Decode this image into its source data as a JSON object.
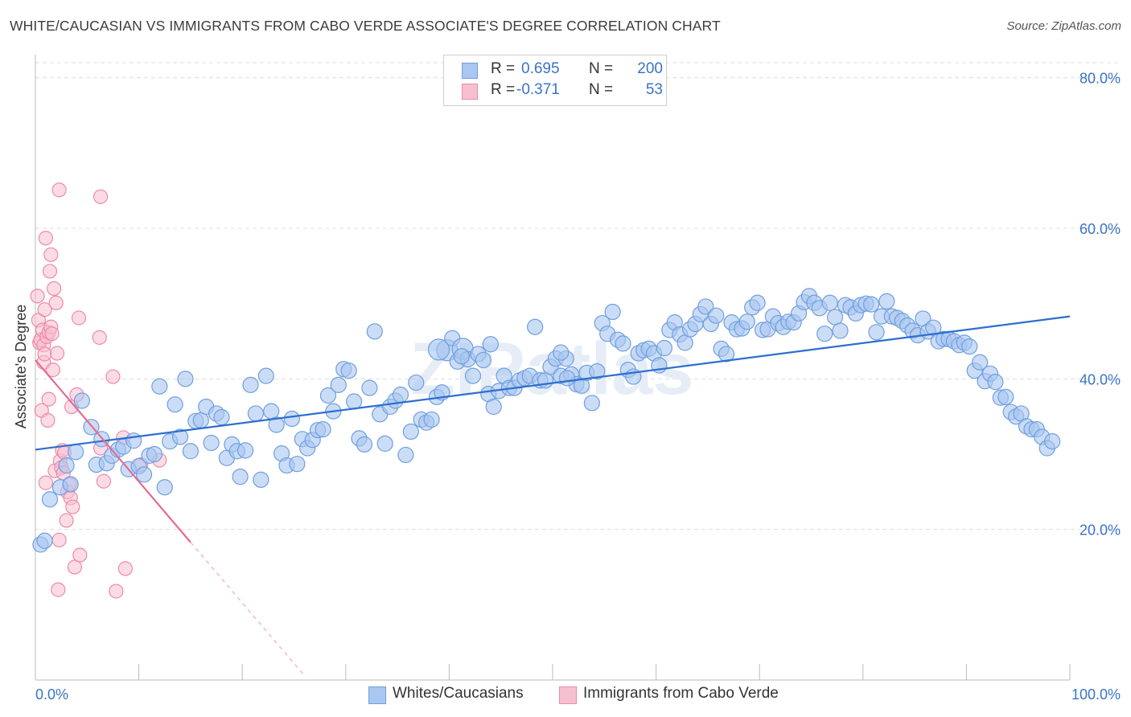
{
  "title": "WHITE/CAUCASIAN VS IMMIGRANTS FROM CABO VERDE ASSOCIATE'S DEGREE CORRELATION CHART",
  "source": "Source: ZipAtlas.com",
  "watermark": "ZIPatlas",
  "colors": {
    "blue_fill": "#a9c7f0",
    "blue_stroke": "#6f9fe0",
    "blue_line": "#2c6fd0",
    "pink_fill": "#f7c0d0",
    "pink_stroke": "#ee8aaa",
    "pink_line": "#e56b95",
    "axis_text": "#3a73c8",
    "grid": "#dddddd"
  },
  "legend": {
    "r_label": "R =",
    "n_label": "N =",
    "rows": [
      {
        "r": "0.695",
        "n": "200"
      },
      {
        "r": "-0.371",
        "n": "53"
      }
    ]
  },
  "chart_data": {
    "type": "scatter",
    "title": "WHITE/CAUCASIAN VS IMMIGRANTS FROM CABO VERDE ASSOCIATE'S DEGREE CORRELATION CHART",
    "xlabel": "",
    "ylabel": "Associate's Degree",
    "xlim": [
      0,
      100
    ],
    "ylim": [
      0,
      82
    ],
    "x_tick_labels": [
      "0.0%",
      "100.0%"
    ],
    "y_ticks": [
      20,
      40,
      60,
      80
    ],
    "y_tick_labels": [
      "20.0%",
      "40.0%",
      "60.0%",
      "80.0%"
    ],
    "grid": true,
    "legend_position": "bottom",
    "series": [
      {
        "name": "Whites/Caucasians",
        "trend": {
          "x0": 0,
          "y0": 30.6,
          "x1": 100,
          "y1": 48.3
        },
        "points": [
          [
            0.5,
            18
          ],
          [
            0.9,
            18.5
          ],
          [
            1.4,
            24
          ],
          [
            2.4,
            25.6
          ],
          [
            3.0,
            28.5
          ],
          [
            3.4,
            26
          ],
          [
            3.9,
            30.3
          ],
          [
            4.5,
            37.1
          ],
          [
            5.4,
            33.6
          ],
          [
            5.9,
            28.6
          ],
          [
            6.4,
            32
          ],
          [
            6.9,
            28.8
          ],
          [
            7.4,
            29.8
          ],
          [
            8.0,
            30.6
          ],
          [
            8.5,
            31
          ],
          [
            9.0,
            28
          ],
          [
            9.5,
            31.8
          ],
          [
            10.0,
            28.4
          ],
          [
            10.5,
            27.3
          ],
          [
            11.0,
            29.8
          ],
          [
            11.5,
            30
          ],
          [
            12.0,
            39
          ],
          [
            12.5,
            25.6
          ],
          [
            13.0,
            31.7
          ],
          [
            13.5,
            36.6
          ],
          [
            14.0,
            32.3
          ],
          [
            14.5,
            40
          ],
          [
            15.0,
            30.4
          ],
          [
            15.5,
            34.4
          ],
          [
            16.0,
            34.5
          ],
          [
            16.5,
            36.3
          ],
          [
            17.0,
            31.5
          ],
          [
            17.5,
            35.4
          ],
          [
            18.0,
            34.9
          ],
          [
            18.5,
            29.5
          ],
          [
            19.0,
            31.3
          ],
          [
            19.5,
            30.4
          ],
          [
            19.8,
            27
          ],
          [
            20.3,
            30.5
          ],
          [
            20.8,
            39.2
          ],
          [
            21.3,
            35.4
          ],
          [
            21.8,
            26.6
          ],
          [
            22.3,
            40.4
          ],
          [
            22.8,
            35.7
          ],
          [
            23.3,
            33.9
          ],
          [
            23.8,
            30.1
          ],
          [
            24.3,
            28.5
          ],
          [
            24.8,
            34.7
          ],
          [
            25.3,
            28.7
          ],
          [
            25.8,
            32
          ],
          [
            26.3,
            30.8
          ],
          [
            26.8,
            31.9
          ],
          [
            27.3,
            33.2
          ],
          [
            27.8,
            33.3
          ],
          [
            28.3,
            37.8
          ],
          [
            28.8,
            35.7
          ],
          [
            29.3,
            39.2
          ],
          [
            29.8,
            41.3
          ],
          [
            30.3,
            41.1
          ],
          [
            30.8,
            37
          ],
          [
            31.3,
            32.1
          ],
          [
            31.8,
            31.3
          ],
          [
            32.3,
            38.8
          ],
          [
            32.8,
            46.3
          ],
          [
            33.3,
            35.3
          ],
          [
            33.8,
            31.4
          ],
          [
            34.3,
            36.3
          ],
          [
            34.8,
            37.1
          ],
          [
            35.3,
            37.9
          ],
          [
            35.8,
            29.9
          ],
          [
            36.3,
            33
          ],
          [
            36.8,
            39.5
          ],
          [
            37.3,
            34.6
          ],
          [
            37.8,
            34.2
          ],
          [
            38.3,
            34.6
          ],
          [
            38.8,
            37.6
          ],
          [
            39.3,
            38.2
          ],
          [
            39.8,
            43.8
          ],
          [
            40.3,
            45.4
          ],
          [
            40.8,
            42.3
          ],
          [
            41.3,
            44
          ],
          [
            41.8,
            42.6
          ],
          [
            42.3,
            40.4
          ],
          [
            42.8,
            43.3
          ],
          [
            43.3,
            42.5
          ],
          [
            43.8,
            38
          ],
          [
            44.3,
            36.3
          ],
          [
            44.8,
            38.4
          ],
          [
            45.3,
            40.4
          ],
          [
            45.8,
            38.8
          ],
          [
            46.3,
            38.8
          ],
          [
            46.8,
            39.8
          ],
          [
            47.3,
            40.1
          ],
          [
            47.8,
            40.4
          ],
          [
            48.3,
            46.9
          ],
          [
            48.8,
            39.8
          ],
          [
            49.3,
            39.8
          ],
          [
            49.8,
            41.6
          ],
          [
            50.3,
            42.7
          ],
          [
            50.8,
            40.4
          ],
          [
            51.3,
            42.7
          ],
          [
            51.8,
            40.6
          ],
          [
            52.3,
            39.3
          ],
          [
            52.8,
            39.1
          ],
          [
            53.3,
            40.8
          ],
          [
            53.8,
            36.8
          ],
          [
            54.3,
            41
          ],
          [
            54.8,
            47.4
          ],
          [
            55.3,
            46
          ],
          [
            55.8,
            48.9
          ],
          [
            56.3,
            45.2
          ],
          [
            56.8,
            44.7
          ],
          [
            57.3,
            41.2
          ],
          [
            57.8,
            40.3
          ],
          [
            58.3,
            43.4
          ],
          [
            58.8,
            43.8
          ],
          [
            59.3,
            44
          ],
          [
            59.8,
            43.4
          ],
          [
            60.3,
            41.8
          ],
          [
            60.8,
            44.1
          ],
          [
            61.3,
            46.5
          ],
          [
            61.8,
            47.5
          ],
          [
            62.3,
            45.9
          ],
          [
            62.8,
            44.8
          ],
          [
            63.3,
            46.6
          ],
          [
            63.8,
            47.3
          ],
          [
            64.3,
            48.6
          ],
          [
            64.8,
            49.6
          ],
          [
            65.3,
            47.3
          ],
          [
            65.8,
            48.4
          ],
          [
            66.3,
            44
          ],
          [
            66.8,
            43.3
          ],
          [
            67.3,
            47.5
          ],
          [
            67.8,
            46.6
          ],
          [
            68.3,
            46.7
          ],
          [
            68.8,
            47.6
          ],
          [
            69.3,
            49.5
          ],
          [
            69.8,
            50.1
          ],
          [
            70.3,
            46.5
          ],
          [
            70.8,
            46.6
          ],
          [
            71.3,
            48.3
          ],
          [
            71.8,
            47.4
          ],
          [
            72.3,
            46.9
          ],
          [
            72.8,
            47.6
          ],
          [
            73.3,
            47.5
          ],
          [
            73.8,
            48.7
          ],
          [
            74.3,
            50.2
          ],
          [
            74.8,
            51
          ],
          [
            75.3,
            50.1
          ],
          [
            75.8,
            49.4
          ],
          [
            76.3,
            46
          ],
          [
            76.8,
            50.1
          ],
          [
            77.3,
            48.2
          ],
          [
            77.8,
            46.4
          ],
          [
            78.3,
            49.8
          ],
          [
            78.8,
            49.5
          ],
          [
            79.3,
            48.7
          ],
          [
            79.8,
            49.8
          ],
          [
            80.3,
            50
          ],
          [
            80.8,
            49.9
          ],
          [
            81.3,
            46.2
          ],
          [
            81.8,
            48.3
          ],
          [
            82.3,
            50.3
          ],
          [
            82.8,
            48.3
          ],
          [
            83.3,
            48.1
          ],
          [
            83.8,
            47.7
          ],
          [
            84.3,
            47.1
          ],
          [
            84.8,
            46.4
          ],
          [
            85.3,
            45.8
          ],
          [
            85.8,
            48
          ],
          [
            86.3,
            46.3
          ],
          [
            86.8,
            46.8
          ],
          [
            87.3,
            45
          ],
          [
            87.8,
            45.3
          ],
          [
            88.3,
            45.3
          ],
          [
            88.8,
            45
          ],
          [
            89.3,
            44.5
          ],
          [
            89.8,
            44.8
          ],
          [
            90.3,
            44.3
          ],
          [
            90.8,
            41.1
          ],
          [
            91.3,
            42.2
          ],
          [
            91.8,
            39.7
          ],
          [
            92.3,
            40.7
          ],
          [
            92.8,
            39.6
          ],
          [
            93.3,
            37.5
          ],
          [
            93.8,
            37.6
          ],
          [
            94.3,
            35.6
          ],
          [
            94.8,
            35
          ],
          [
            95.3,
            35.4
          ],
          [
            95.8,
            33.7
          ],
          [
            96.3,
            33.3
          ],
          [
            96.8,
            33.3
          ],
          [
            97.3,
            32.3
          ],
          [
            97.8,
            30.8
          ],
          [
            98.3,
            31.7
          ],
          [
            39.0,
            43.9
          ],
          [
            41.2,
            43.0
          ],
          [
            44.0,
            44.6
          ],
          [
            50.8,
            43.5
          ],
          [
            51.4,
            40.1
          ]
        ]
      },
      {
        "name": "Immigrants from Cabo Verde",
        "trend": {
          "x0": 0,
          "y0": 42.5,
          "x1": 15,
          "y1": 18.3,
          "x_dash_end": 26,
          "y_dash_end": 0.6
        },
        "points": [
          [
            0.2,
            51
          ],
          [
            0.3,
            47.8
          ],
          [
            0.4,
            44.8
          ],
          [
            0.5,
            45.2
          ],
          [
            0.6,
            35.8
          ],
          [
            0.7,
            46.5
          ],
          [
            0.8,
            44.5
          ],
          [
            0.8,
            42.2
          ],
          [
            0.9,
            49.2
          ],
          [
            0.9,
            43.3
          ],
          [
            1.0,
            58.7
          ],
          [
            1.0,
            26.2
          ],
          [
            1.1,
            45.6
          ],
          [
            1.2,
            34.5
          ],
          [
            1.3,
            46.2
          ],
          [
            1.3,
            37.3
          ],
          [
            1.4,
            54.3
          ],
          [
            1.5,
            56.5
          ],
          [
            1.5,
            46.9
          ],
          [
            1.6,
            46
          ],
          [
            1.7,
            41.2
          ],
          [
            1.8,
            52
          ],
          [
            1.9,
            27.8
          ],
          [
            2.0,
            50.1
          ],
          [
            2.1,
            43.4
          ],
          [
            2.2,
            12
          ],
          [
            2.3,
            65.1
          ],
          [
            2.3,
            18.6
          ],
          [
            2.4,
            29.1
          ],
          [
            2.5,
            28.2
          ],
          [
            2.6,
            30.5
          ],
          [
            2.7,
            27.5
          ],
          [
            2.8,
            30.2
          ],
          [
            3.0,
            21.2
          ],
          [
            3.1,
            25
          ],
          [
            3.3,
            26
          ],
          [
            3.4,
            24.2
          ],
          [
            3.5,
            36.3
          ],
          [
            3.6,
            23
          ],
          [
            3.8,
            15
          ],
          [
            4.0,
            37.9
          ],
          [
            4.2,
            48.1
          ],
          [
            4.3,
            16.6
          ],
          [
            6.3,
            64.2
          ],
          [
            6.2,
            45.5
          ],
          [
            6.3,
            30.8
          ],
          [
            6.6,
            26.4
          ],
          [
            7.5,
            40.3
          ],
          [
            7.8,
            11.8
          ],
          [
            8.5,
            32.2
          ],
          [
            8.7,
            14.8
          ],
          [
            10.2,
            28.6
          ],
          [
            12.0,
            29.2
          ]
        ]
      }
    ]
  },
  "bottom_legend": {
    "items": [
      "Whites/Caucasians",
      "Immigrants from Cabo Verde"
    ]
  }
}
